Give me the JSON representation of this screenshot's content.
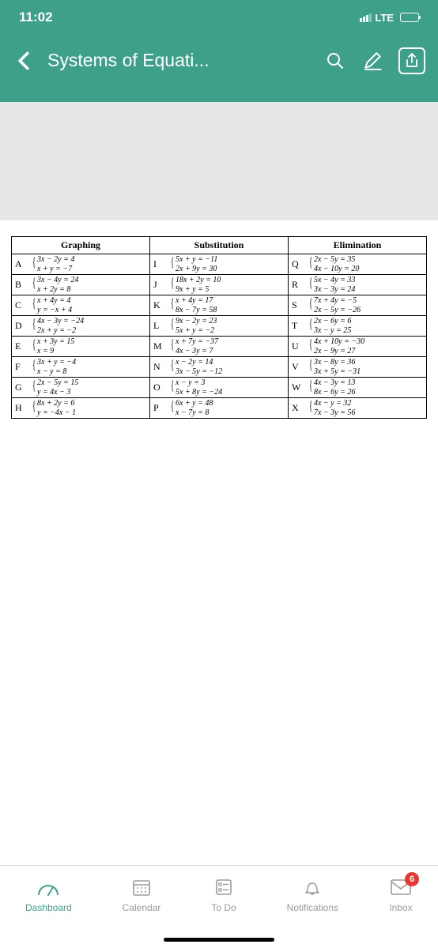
{
  "status": {
    "time": "11:02",
    "network": "LTE"
  },
  "header": {
    "title": "Systems of Equati..."
  },
  "table": {
    "headers": [
      "Graphing",
      "Substitution",
      "Elimination"
    ],
    "cols": [
      [
        {
          "l": "A",
          "e1": "3x − 2y = 4",
          "e2": "x + y = −7"
        },
        {
          "l": "B",
          "e1": "3x − 4y = 24",
          "e2": "x + 2y = 8"
        },
        {
          "l": "C",
          "e1": "x + 4y = 4",
          "e2": "y = −x + 4"
        },
        {
          "l": "D",
          "e1": "4x − 3y = −24",
          "e2": "2x + y = −2"
        },
        {
          "l": "E",
          "e1": "x + 3y = 15",
          "e2": "x = 9"
        },
        {
          "l": "F",
          "e1": "3x + y = −4",
          "e2": "x − y = 8"
        },
        {
          "l": "G",
          "e1": "2x − 5y = 15",
          "e2": "y = 4x − 3"
        },
        {
          "l": "H",
          "e1": "8x + 2y = 6",
          "e2": "y = −4x − 1"
        }
      ],
      [
        {
          "l": "I",
          "e1": "5x + y = −11",
          "e2": "2x + 9y = 30"
        },
        {
          "l": "J",
          "e1": "18x + 2y = 10",
          "e2": "9x + y = 5"
        },
        {
          "l": "K",
          "e1": "x + 4y = 17",
          "e2": "8x − 7y = 58"
        },
        {
          "l": "L",
          "e1": "9x − 2y = 23",
          "e2": "5x + y = −2"
        },
        {
          "l": "M",
          "e1": "x + 7y = −37",
          "e2": "4x − 3y = 7"
        },
        {
          "l": "N",
          "e1": "x − 2y = 14",
          "e2": "3x − 5y = −12"
        },
        {
          "l": "O",
          "e1": "x − y = 3",
          "e2": "5x + 8y = −24"
        },
        {
          "l": "P",
          "e1": "6x + y = 48",
          "e2": "x − 7y = 8"
        }
      ],
      [
        {
          "l": "Q",
          "e1": "2x − 5y = 35",
          "e2": "4x − 10y = 20"
        },
        {
          "l": "R",
          "e1": "5x − 4y = 33",
          "e2": "3x − 3y = 24"
        },
        {
          "l": "S",
          "e1": "7x + 4y = −5",
          "e2": "2x − 5y = −26"
        },
        {
          "l": "T",
          "e1": "2x − 6y = 6",
          "e2": "3x − y = 25"
        },
        {
          "l": "U",
          "e1": "4x + 10y = −30",
          "e2": "2x − 9y = 27"
        },
        {
          "l": "V",
          "e1": "3x − 8y = 36",
          "e2": "3x + 5y = −31"
        },
        {
          "l": "W",
          "e1": "4x − 3y = 13",
          "e2": "8x − 6y = 26"
        },
        {
          "l": "X",
          "e1": "4x − y = 32",
          "e2": "7x − 3y = 56"
        }
      ]
    ]
  },
  "tabs": {
    "dashboard": "Dashboard",
    "calendar": "Calendar",
    "todo": "To Do",
    "notifications": "Notifications",
    "inbox": "Inbox",
    "inbox_badge": "6"
  }
}
